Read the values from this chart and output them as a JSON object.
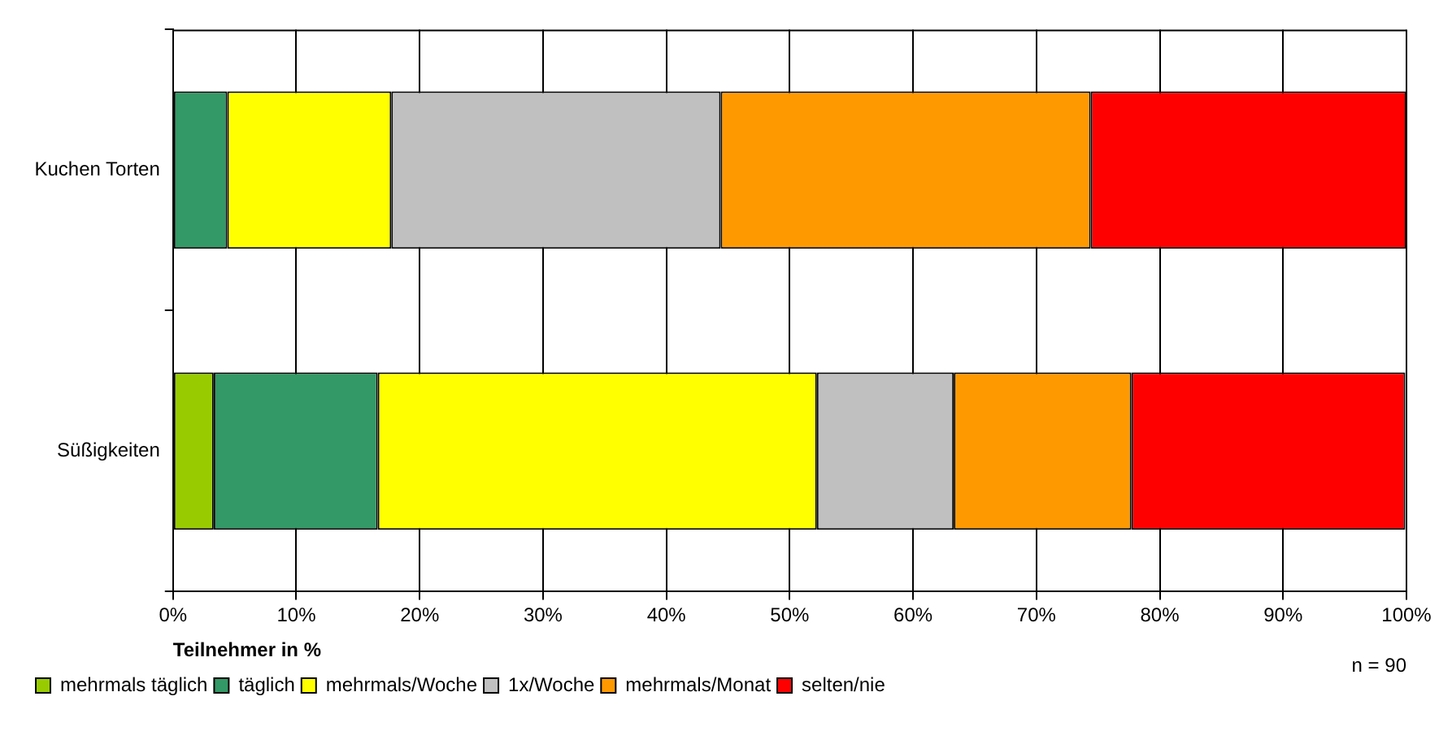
{
  "chart_data": {
    "type": "bar",
    "orientation": "horizontal",
    "stacked": true,
    "xlabel": "Teilnehmer in %",
    "categories": [
      "Kuchen Torten",
      "Süßigkeiten"
    ],
    "series": [
      {
        "name": "mehrmals täglich",
        "color": "#99cc00",
        "values": [
          0,
          3.3
        ]
      },
      {
        "name": "täglich",
        "color": "#339966",
        "values": [
          4.4,
          13.3
        ]
      },
      {
        "name": "mehrmals/Woche",
        "color": "#ffff00",
        "values": [
          13.3,
          35.6
        ]
      },
      {
        "name": "1x/Woche",
        "color": "#c0c0c0",
        "values": [
          26.7,
          11.1
        ]
      },
      {
        "name": "mehrmals/Monat",
        "color": "#ff9900",
        "values": [
          30,
          14.4
        ]
      },
      {
        "name": "selten/nie",
        "color": "#ff0000",
        "values": [
          25.6,
          22.2
        ]
      }
    ],
    "xlim": [
      0,
      100
    ],
    "xticks": [
      {
        "value": 0,
        "label": "0%"
      },
      {
        "value": 10,
        "label": "10%"
      },
      {
        "value": 20,
        "label": "20%"
      },
      {
        "value": 30,
        "label": "30%"
      },
      {
        "value": 40,
        "label": "40%"
      },
      {
        "value": 50,
        "label": "50%"
      },
      {
        "value": 60,
        "label": "60%"
      },
      {
        "value": 70,
        "label": "70%"
      },
      {
        "value": 80,
        "label": "80%"
      },
      {
        "value": 90,
        "label": "90%"
      },
      {
        "value": 100,
        "label": "100%"
      }
    ],
    "grid": "x",
    "legend": "bottom",
    "annotations": [
      "n = 90"
    ]
  }
}
